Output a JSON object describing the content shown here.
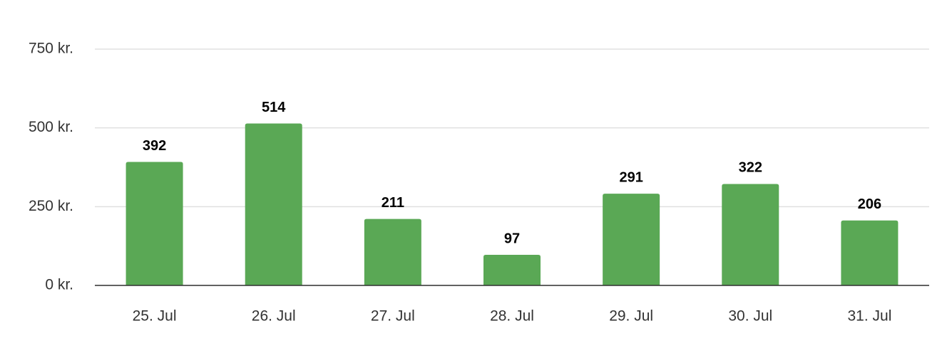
{
  "chart_data": {
    "type": "bar",
    "categories": [
      "25. Jul",
      "26. Jul",
      "27. Jul",
      "28. Jul",
      "29. Jul",
      "30. Jul",
      "31. Jul"
    ],
    "values": [
      392,
      514,
      211,
      97,
      291,
      322,
      206
    ],
    "color": "#5aa855",
    "ylim": [
      0,
      750
    ],
    "yticks": [
      {
        "value": 0,
        "label": "0 kr."
      },
      {
        "value": 250,
        "label": "250 kr."
      },
      {
        "value": 500,
        "label": "500 kr."
      },
      {
        "value": 750,
        "label": "750 kr."
      }
    ],
    "grid": true
  }
}
